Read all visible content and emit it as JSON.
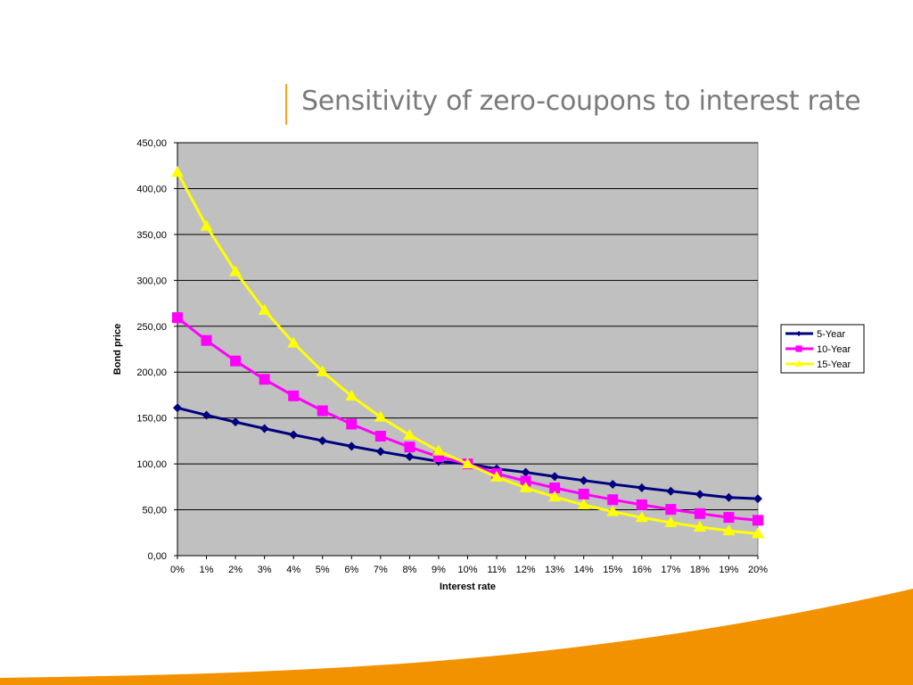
{
  "slide": {
    "title": "Sensitivity of zero-coupons to interest rate",
    "accent_color": "#f5a623",
    "swoosh_color": "#f39200"
  },
  "chart_data": {
    "type": "line",
    "title": "",
    "xlabel": "Interest rate",
    "ylabel": "Bond price",
    "categories": [
      "0%",
      "1%",
      "2%",
      "3%",
      "4%",
      "5%",
      "6%",
      "7%",
      "8%",
      "9%",
      "10%",
      "11%",
      "12%",
      "13%",
      "14%",
      "15%",
      "16%",
      "17%",
      "18%",
      "19%",
      "20%"
    ],
    "ylim": [
      0,
      450
    ],
    "yticks": [
      "0,00",
      "50,00",
      "100,00",
      "150,00",
      "200,00",
      "250,00",
      "300,00",
      "350,00",
      "400,00",
      "450,00"
    ],
    "ytick_values": [
      0,
      50,
      100,
      150,
      200,
      250,
      300,
      350,
      400,
      450
    ],
    "plot_background": "#c0c0c0",
    "grid": true,
    "legend_position": "right",
    "series": [
      {
        "name": "5-Year",
        "color": "#00007f",
        "marker": "diamond",
        "values": [
          161.05,
          153.13,
          145.61,
          138.48,
          131.72,
          125.3,
          119.21,
          113.43,
          107.94,
          102.73,
          100.0,
          94.61,
          90.82,
          86.26,
          81.94,
          77.81,
          73.96,
          70.28,
          66.78,
          63.45,
          62.09
        ]
      },
      {
        "name": "10-Year",
        "color": "#ff00ff",
        "marker": "square",
        "values": [
          259.37,
          234.52,
          212.17,
          192.17,
          174.12,
          157.92,
          143.37,
          130.23,
          118.41,
          107.73,
          100.0,
          89.46,
          81.29,
          73.87,
          67.14,
          61.03,
          55.48,
          50.44,
          45.86,
          41.71,
          38.55
        ]
      },
      {
        "name": "15-Year",
        "color": "#ffff00",
        "marker": "triangle",
        "values": [
          417.72,
          359.02,
          309.54,
          267.41,
          231.86,
          200.51,
          173.9,
          151.04,
          131.32,
          114.05,
          100.0,
          85.59,
          73.98,
          63.97,
          55.38,
          47.95,
          41.57,
          36.04,
          31.26,
          27.13,
          23.94
        ]
      }
    ]
  }
}
